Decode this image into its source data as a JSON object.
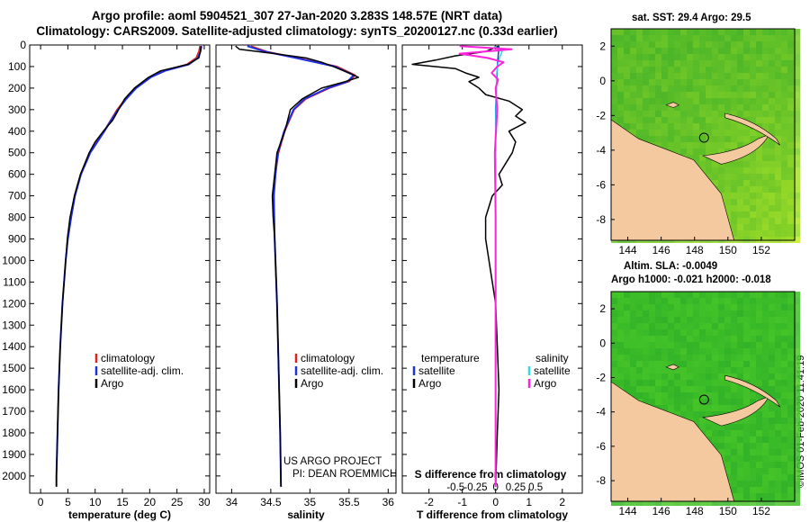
{
  "header": {
    "line1": "Argo profile: aoml 5904521_307 27-Jan-2020 3.283S 148.57E (NRT data)",
    "line2": "Climatology: CARS2009. Satellite-adjusted climatology: synTS_20200127.nc (0.33d earlier)"
  },
  "colors": {
    "climatology": "#e0201a",
    "satellite": "#2030e0",
    "argo": "#000000",
    "salinity_diff": "#ff22dd",
    "satellite_salinity": "#33dddd",
    "land": "#f5c9a0",
    "ocean_dark": "#1aa02a",
    "ocean_light": "#88d838"
  },
  "chart_data": [
    {
      "type": "line",
      "name": "temperature",
      "xlabel": "temperature (deg C)",
      "xlim": [
        -2,
        31
      ],
      "xticks": [
        0,
        5,
        10,
        15,
        20,
        25,
        30
      ],
      "ylim": [
        0,
        2080
      ],
      "yticks": [
        0,
        100,
        200,
        300,
        400,
        500,
        600,
        700,
        800,
        900,
        1000,
        1100,
        1200,
        1300,
        1400,
        1500,
        1600,
        1700,
        1800,
        1900,
        2000
      ],
      "legend": [
        "climatology",
        "satellite-adj. clim.",
        "Argo"
      ],
      "series": [
        {
          "name": "climatology",
          "depth": [
            5,
            30,
            60,
            90,
            120,
            150,
            200,
            250,
            300,
            350,
            400,
            450,
            500,
            600,
            700,
            800,
            900,
            1000,
            1200,
            1400,
            1600,
            1800,
            2000,
            2050
          ],
          "values": [
            29.2,
            29.0,
            28.5,
            26.8,
            22.5,
            20.0,
            17.3,
            15.5,
            14.0,
            12.8,
            11.6,
            10.3,
            9.0,
            7.3,
            6.2,
            5.5,
            5.0,
            4.6,
            4.0,
            3.6,
            3.3,
            3.1,
            2.9,
            2.9
          ]
        },
        {
          "name": "satellite-adj. clim.",
          "depth": [
            5,
            30,
            60,
            90,
            120,
            150,
            200,
            250,
            300,
            350,
            400,
            450,
            500,
            600,
            700,
            800,
            900,
            1000,
            1200,
            1400,
            1600,
            1800,
            2000,
            2050
          ],
          "values": [
            29.5,
            29.3,
            28.8,
            27.2,
            22.8,
            20.2,
            17.5,
            15.7,
            14.2,
            12.9,
            11.7,
            10.4,
            9.1,
            7.4,
            6.3,
            5.6,
            5.0,
            4.6,
            4.0,
            3.6,
            3.3,
            3.1,
            2.9,
            2.9
          ]
        },
        {
          "name": "Argo",
          "depth": [
            5,
            30,
            60,
            90,
            120,
            150,
            200,
            250,
            300,
            350,
            400,
            450,
            500,
            600,
            700,
            800,
            900,
            1000,
            1200,
            1400,
            1600,
            1800,
            2000,
            2050
          ],
          "values": [
            29.4,
            29.3,
            29.0,
            27.0,
            22.0,
            19.8,
            17.2,
            15.4,
            14.3,
            13.2,
            11.5,
            10.0,
            8.9,
            7.3,
            6.2,
            5.4,
            4.9,
            4.6,
            4.0,
            3.6,
            3.3,
            3.1,
            2.9,
            2.9
          ]
        }
      ]
    },
    {
      "type": "line",
      "name": "salinity",
      "xlabel": "salinity",
      "xlim": [
        33.8,
        36.1
      ],
      "xticks": [
        34,
        34.5,
        35,
        35.5,
        36
      ],
      "ylim": [
        0,
        2080
      ],
      "legend": [
        "climatology",
        "satellite-adj. clim.",
        "Argo"
      ],
      "annotation": [
        "US ARGO PROJECT",
        "PI: DEAN ROEMMICH"
      ],
      "series": [
        {
          "name": "climatology",
          "depth": [
            5,
            30,
            60,
            100,
            140,
            170,
            200,
            250,
            300,
            400,
            500,
            600,
            700,
            900,
            1200,
            1500,
            1800,
            2050
          ],
          "values": [
            34.25,
            34.45,
            34.85,
            35.35,
            35.58,
            35.5,
            35.25,
            34.95,
            34.8,
            34.68,
            34.6,
            34.56,
            34.54,
            34.55,
            34.58,
            34.6,
            34.62,
            34.63
          ]
        },
        {
          "name": "satellite-adj. clim.",
          "depth": [
            5,
            30,
            60,
            100,
            140,
            170,
            200,
            250,
            300,
            400,
            500,
            600,
            700,
            900,
            1200,
            1500,
            1800,
            2050
          ],
          "values": [
            34.2,
            34.42,
            34.82,
            35.32,
            35.56,
            35.48,
            35.23,
            34.93,
            34.79,
            34.67,
            34.59,
            34.56,
            34.54,
            34.55,
            34.58,
            34.6,
            34.62,
            34.63
          ]
        },
        {
          "name": "Argo",
          "depth": [
            5,
            20,
            40,
            60,
            80,
            100,
            130,
            150,
            170,
            200,
            250,
            300,
            400,
            500,
            600,
            700,
            800,
            900,
            1200,
            1500,
            1800,
            2050
          ],
          "values": [
            34.05,
            34.1,
            34.55,
            34.95,
            35.15,
            35.3,
            35.5,
            35.62,
            35.45,
            35.15,
            34.9,
            34.75,
            34.68,
            34.58,
            34.55,
            34.52,
            34.53,
            34.55,
            34.58,
            34.6,
            34.62,
            34.63
          ]
        }
      ]
    },
    {
      "type": "line",
      "name": "difference",
      "xlabel": "T difference from climatology",
      "xlim": [
        -2.8,
        2.6
      ],
      "xticks": [
        -2,
        -1,
        0,
        1,
        2
      ],
      "top_label": "S difference from climatology",
      "top_ticks": [
        "-0.5",
        "-0.25",
        "0",
        "0.25",
        "0.5"
      ],
      "ylim": [
        0,
        2080
      ],
      "legend_left_title": "temperature",
      "legend_right_title": "salinity",
      "legend_left": [
        "satellite",
        "Argo"
      ],
      "legend_right": [
        "satellite",
        "Argo"
      ],
      "series": [
        {
          "name": "T Argo",
          "depth": [
            5,
            30,
            50,
            70,
            90,
            110,
            130,
            150,
            170,
            200,
            230,
            260,
            300,
            330,
            360,
            400,
            450,
            500,
            550,
            600,
            650,
            700,
            750,
            800,
            900,
            1000,
            1100,
            1200,
            1400,
            1600,
            1800,
            2050
          ],
          "values": [
            0.1,
            -0.3,
            -1.2,
            -1.8,
            -2.5,
            -1.2,
            -0.9,
            -0.5,
            -0.8,
            -0.5,
            -0.3,
            0.4,
            0.8,
            0.6,
            0.9,
            0.4,
            0.6,
            0.5,
            0.3,
            0.1,
            0.2,
            -0.1,
            -0.2,
            -0.3,
            -0.3,
            -0.2,
            -0.1,
            0.0,
            0.05,
            0.1,
            0.05,
            0.0
          ]
        },
        {
          "name": "T satellite",
          "depth": [
            5,
            100,
            300,
            600,
            1000,
            1500,
            2050
          ],
          "values": [
            0.1,
            0.05,
            0.0,
            0.0,
            0.0,
            0.0,
            0.0
          ]
        },
        {
          "name": "S Argo",
          "depth": [
            5,
            20,
            40,
            60,
            80,
            100,
            130,
            160,
            200,
            300,
            500,
            800,
            1200,
            1600,
            2050
          ],
          "values": [
            -0.45,
            0.2,
            -0.45,
            -0.1,
            0.1,
            0.02,
            -0.05,
            0.03,
            0.0,
            0.02,
            -0.01,
            0.0,
            0.0,
            0.0,
            0.0
          ]
        },
        {
          "name": "S satellite",
          "depth": [
            5,
            30,
            60,
            100,
            150,
            200,
            400,
            800,
            1200,
            1600,
            2050
          ],
          "values": [
            -0.02,
            0.08,
            0.05,
            0.02,
            0.01,
            0.01,
            0.0,
            0.0,
            0.0,
            0.0,
            0.0
          ]
        }
      ]
    },
    {
      "type": "heatmap",
      "name": "sst_map",
      "title": "sat. SST: 29.4 Argo: 29.5",
      "xticks": [
        144,
        146,
        148,
        150,
        152
      ],
      "yticks": [
        2,
        0,
        -2,
        -4,
        -6,
        -8
      ],
      "profile_location": {
        "lon": 148.57,
        "lat": -3.283
      }
    },
    {
      "type": "heatmap",
      "name": "sla_map",
      "title_line1": "Altim. SLA: -0.0049",
      "title_line2": "Argo h1000: -0.021 h2000: -0.018",
      "xticks": [
        144,
        146,
        148,
        150,
        152
      ],
      "yticks": [
        2,
        0,
        -2,
        -4,
        -6,
        -8
      ],
      "profile_location": {
        "lon": 148.57,
        "lat": -3.283
      }
    }
  ],
  "footer_stamp": "©IMOS 01-Feb-2020 11:41:19"
}
